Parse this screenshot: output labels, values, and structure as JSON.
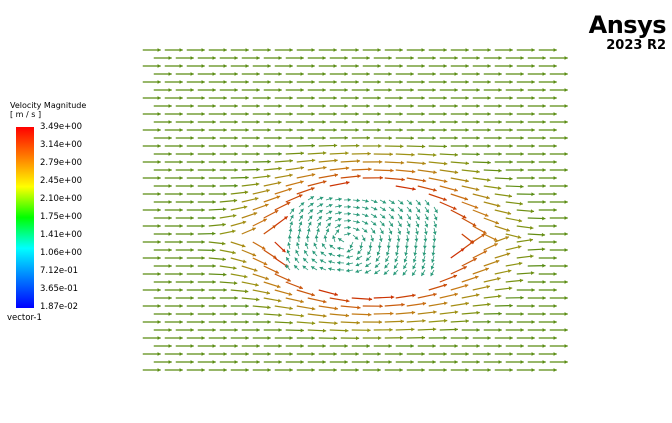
{
  "brand": {
    "name": "Ansys",
    "version": "2023 R2"
  },
  "legend": {
    "title": "Velocity Magnitude",
    "unit": "[ m / s ]",
    "labels": [
      "3.49e+00",
      "3.14e+00",
      "2.79e+00",
      "2.45e+00",
      "2.10e+00",
      "1.75e+00",
      "1.41e+00",
      "1.06e+00",
      "7.12e-01",
      "3.65e-01",
      "1.87e-02"
    ],
    "variable": "vector-1",
    "colors": [
      "#ff0000",
      "#ff8000",
      "#ffff00",
      "#00ff00",
      "#00ffff",
      "#0080ff",
      "#0000ff"
    ]
  },
  "scene": {
    "freestream_color": "#4f8a12",
    "vortex_color": "#cc2200"
  }
}
